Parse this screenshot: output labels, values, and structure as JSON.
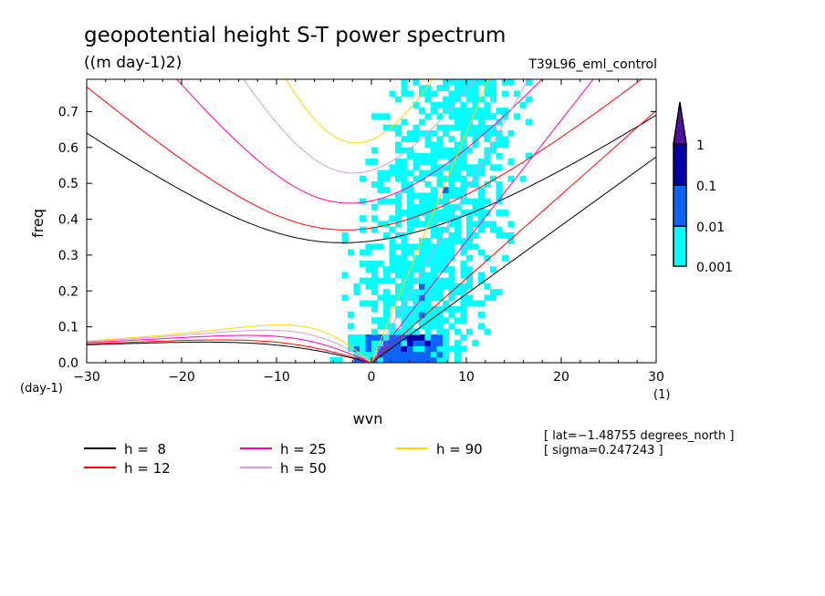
{
  "chart_data": {
    "type": "heatmap",
    "title": "geopotential height S-T power spectrum",
    "subtitle": "((m day-1)2)",
    "dataset": "T39L96_eml_control",
    "xlabel": "wvn",
    "ylabel": "freq",
    "x_units": "(1)",
    "y_units": "(day-1)",
    "xlim": [
      -30,
      30
    ],
    "ylim": [
      0,
      0.79
    ],
    "x_ticks": [
      -30,
      -20,
      -10,
      0,
      10,
      20,
      30
    ],
    "x_tick_labels": [
      "−30",
      "−20",
      "−10",
      "0",
      "10",
      "20",
      "30"
    ],
    "y_ticks": [
      0,
      0.1,
      0.2,
      0.3,
      0.4,
      0.5,
      0.6,
      0.7
    ],
    "y_tick_labels": [
      "0.0",
      "0.1",
      "0.2",
      "0.3",
      "0.4",
      "0.5",
      "0.6",
      "0.7"
    ],
    "colorbar": {
      "levels": [
        0.001,
        0.01,
        0.1,
        1
      ],
      "level_labels": [
        "0.001",
        "0.01",
        "0.1",
        "1"
      ],
      "colors": [
        "#00ffff",
        "#0a64ff",
        "#0000a8",
        "#5010a0"
      ],
      "extend": "max"
    },
    "dispersion_curves": [
      {
        "h": 8,
        "label": "h =  8",
        "color": "#000000"
      },
      {
        "h": 12,
        "label": "h = 12",
        "color": "#ff0000"
      },
      {
        "h": 25,
        "label": "h = 25",
        "color": "#ff00aa"
      },
      {
        "h": 50,
        "label": "h = 50",
        "color": "#dd99dd"
      },
      {
        "h": 90,
        "label": "h = 90",
        "color": "#ffd700"
      }
    ],
    "annotations": [
      "[ lat=−1.48755 degrees_north ]",
      "[ sigma=0.247243 ]"
    ]
  }
}
